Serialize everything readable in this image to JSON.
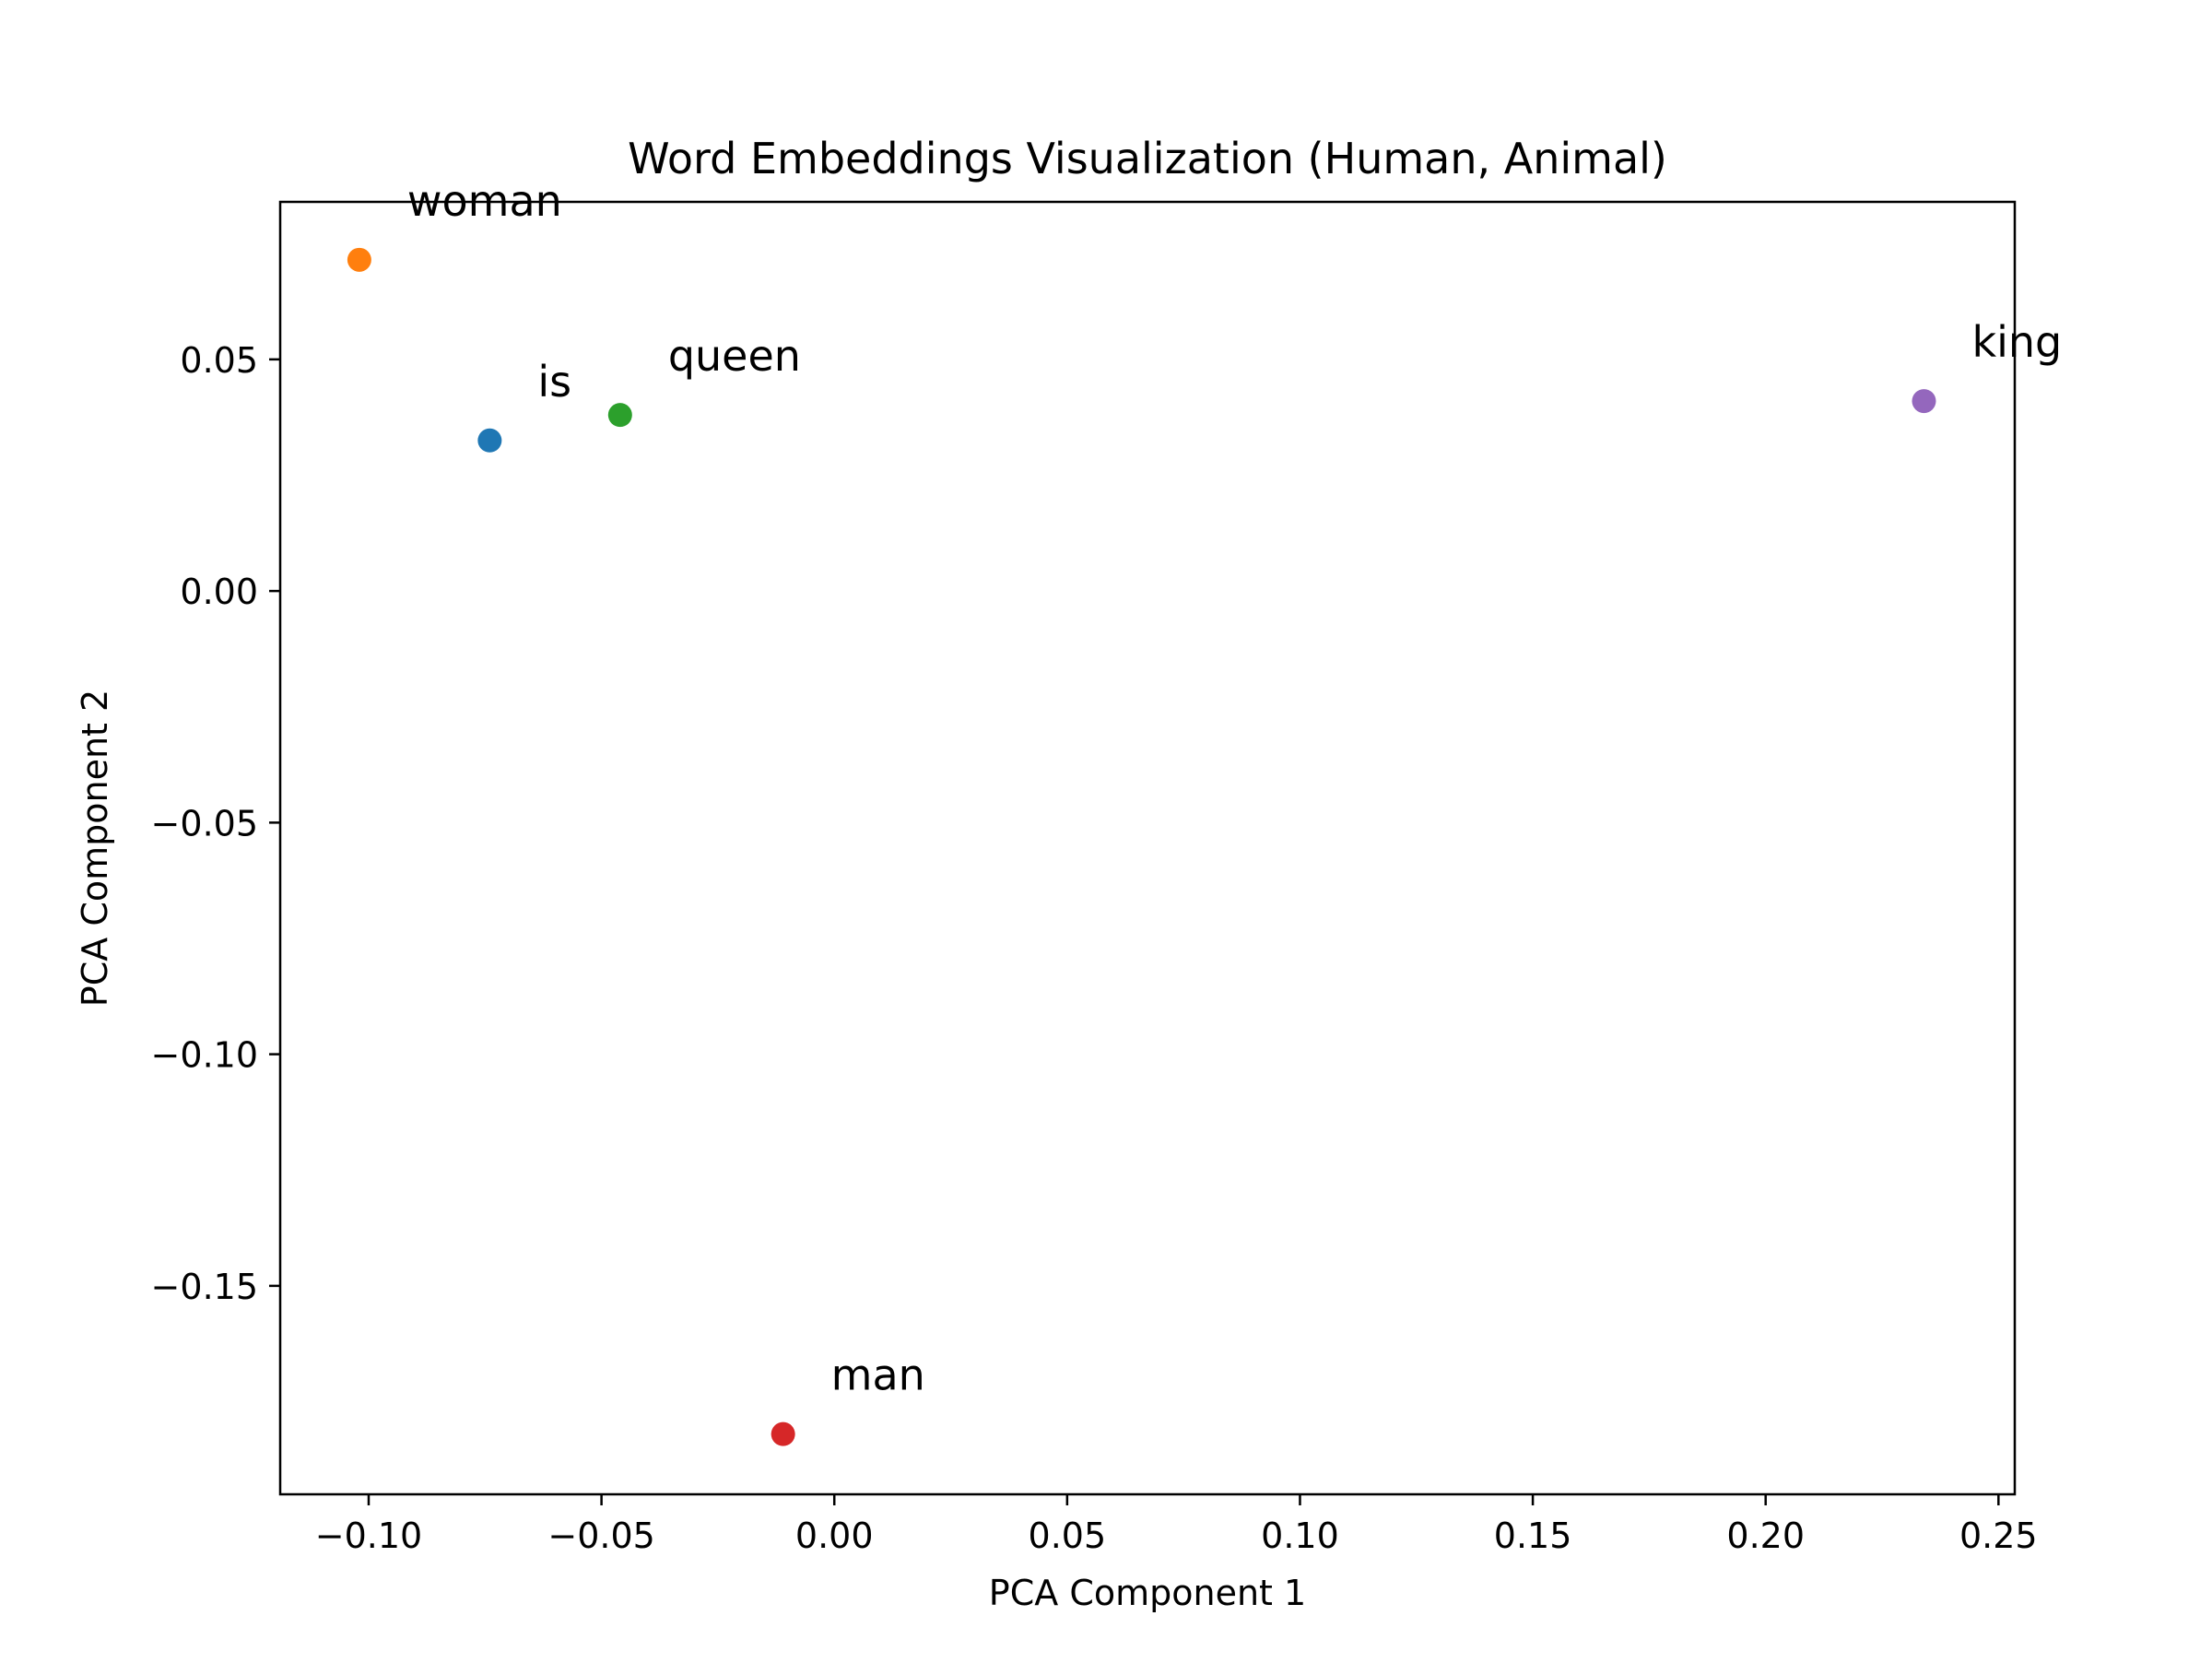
{
  "chart_data": {
    "type": "scatter",
    "title": "Word Embeddings Visualization (Human, Animal)",
    "xlabel": "PCA Component 1",
    "ylabel": "PCA Component 2",
    "xlim": [
      -0.119,
      0.2535
    ],
    "ylim": [
      -0.195,
      0.084
    ],
    "xticks": [
      -0.1,
      -0.05,
      0.0,
      0.05,
      0.1,
      0.15,
      0.2,
      0.25
    ],
    "yticks": [
      -0.15,
      -0.1,
      -0.05,
      0.0,
      0.05
    ],
    "xtick_labels": [
      "−0.10",
      "−0.05",
      "0.00",
      "0.05",
      "0.10",
      "0.15",
      "0.20",
      "0.25"
    ],
    "ytick_labels": [
      "−0.15",
      "−0.10",
      "−0.05",
      "0.00",
      "0.05"
    ],
    "grid": false,
    "legend": "none",
    "points": [
      {
        "label": "is",
        "x": -0.074,
        "y": 0.0325,
        "color": "#1f77b4"
      },
      {
        "label": "woman",
        "x": -0.102,
        "y": 0.0715,
        "color": "#ff7f0e"
      },
      {
        "label": "queen",
        "x": -0.046,
        "y": 0.038,
        "color": "#2ca02c"
      },
      {
        "label": "man",
        "x": -0.011,
        "y": -0.182,
        "color": "#d62728"
      },
      {
        "label": "king",
        "x": 0.234,
        "y": 0.041,
        "color": "#9467bd"
      }
    ]
  }
}
